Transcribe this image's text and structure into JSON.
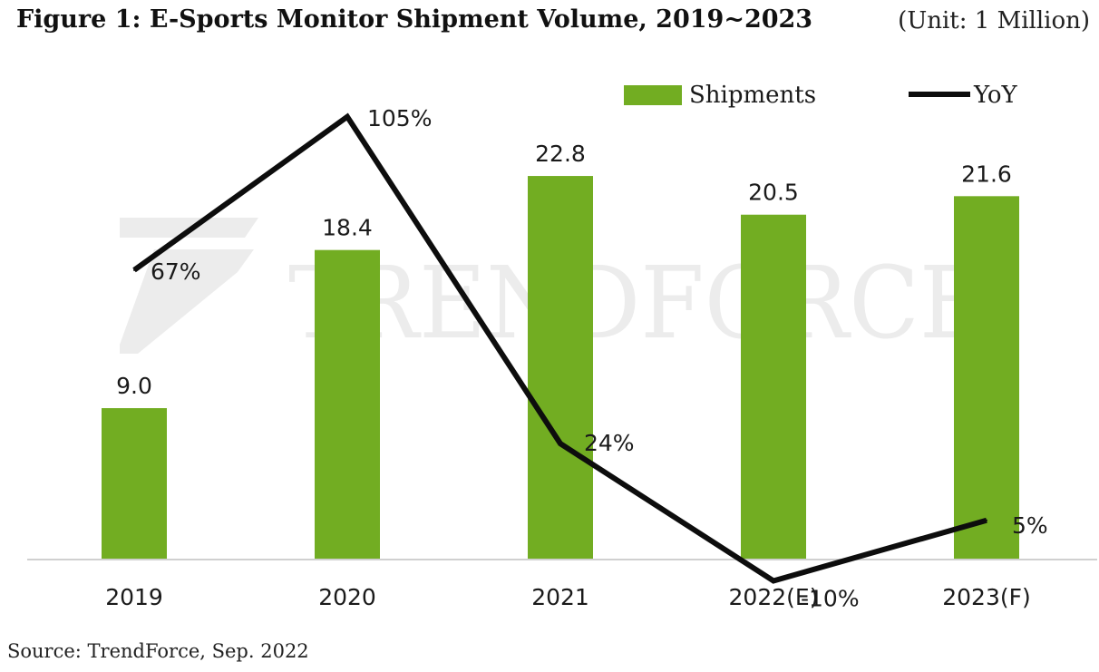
{
  "figure": {
    "title": "Figure 1: E-Sports Monitor Shipment Volume, 2019~2023",
    "unit": "(Unit: 1 Million)",
    "source": "Source: TrendForce, Sep. 2022",
    "watermark": "TrendForce"
  },
  "colors": {
    "bar": "#72ad22",
    "line": "#0d0d0d",
    "axis": "#d0d0d0",
    "watermark": "#ececec"
  },
  "chart_data": {
    "type": "bar",
    "title": "Figure 1: E-Sports Monitor Shipment Volume, 2019~2023",
    "xlabel": "",
    "ylabel": "",
    "categories": [
      "2019",
      "2020",
      "2021",
      "2022(E)",
      "2023(F)"
    ],
    "ylim": [
      0,
      25
    ],
    "y2lim": [
      -20,
      110
    ],
    "legend_position": "top-right",
    "grid": false,
    "series": [
      {
        "name": "Shipments",
        "kind": "bar",
        "axis": "left",
        "values": [
          9.0,
          18.4,
          22.8,
          20.5,
          21.6
        ],
        "labels": [
          "9.0",
          "18.4",
          "22.8",
          "20.5",
          "21.6"
        ]
      },
      {
        "name": "YoY",
        "kind": "line",
        "axis": "right",
        "values": [
          67,
          105,
          24,
          -10,
          5
        ],
        "labels": [
          "67%",
          "105%",
          "24%",
          "-10%",
          "5%"
        ]
      }
    ]
  }
}
